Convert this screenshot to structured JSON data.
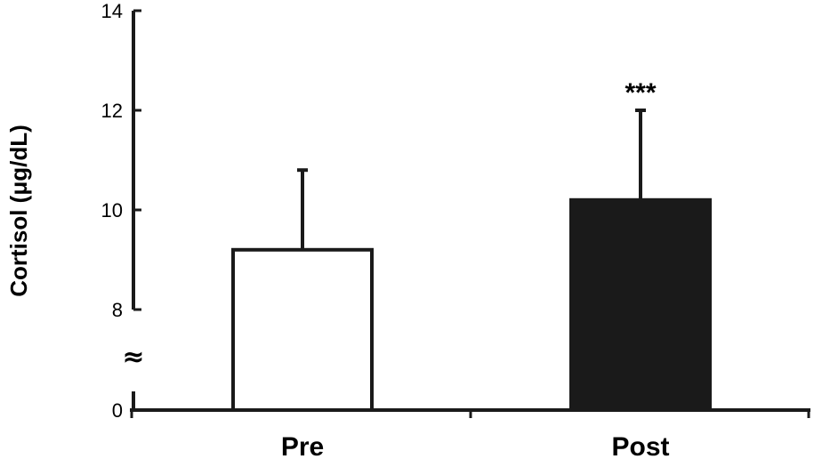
{
  "chart_data": {
    "type": "bar",
    "title": "",
    "xlabel": "",
    "ylabel": "Cortisol (μg/dL)",
    "categories": [
      "Pre",
      "Post"
    ],
    "values": [
      9.2,
      10.2
    ],
    "error_upper": [
      10.8,
      12.0
    ],
    "annotations": [
      "",
      "***"
    ],
    "bar_fill": [
      "#ffffff",
      "#1a1a1a"
    ],
    "bar_stroke": "#1a1a1a",
    "yticks": [
      {
        "value": 0,
        "label": "0"
      },
      {
        "value": 8,
        "label": "8"
      },
      {
        "value": 10,
        "label": "10"
      },
      {
        "value": 12,
        "label": "12"
      },
      {
        "value": 14,
        "label": "14"
      }
    ],
    "axis_break": {
      "from": 0,
      "to": 8,
      "symbol": "≈"
    },
    "ylim": [
      0,
      14
    ],
    "grid": false,
    "legend": "none"
  }
}
